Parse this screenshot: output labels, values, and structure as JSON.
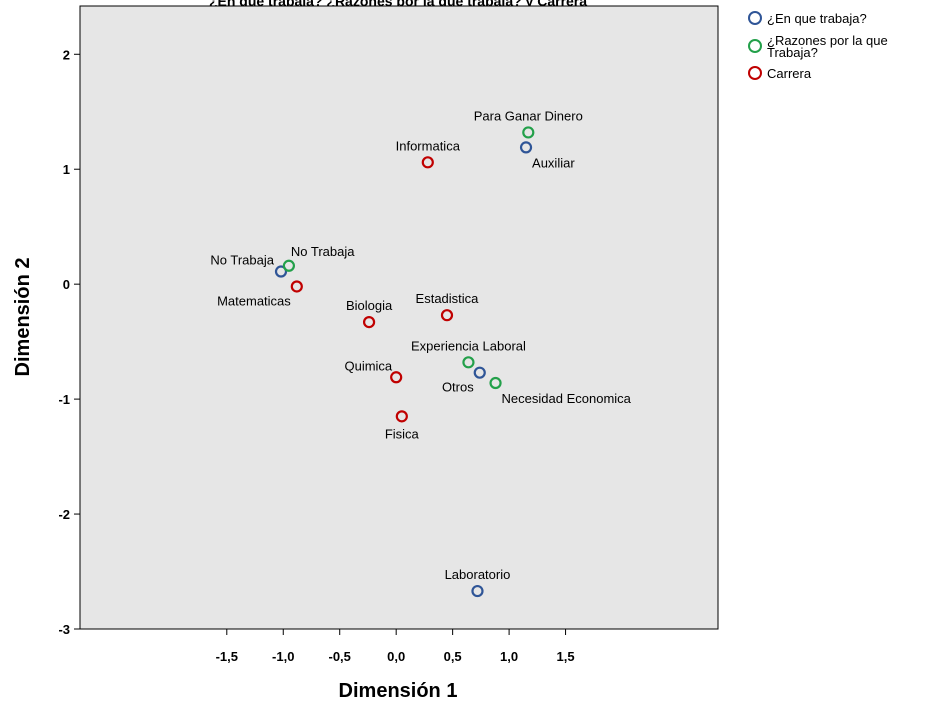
{
  "chart_data": {
    "type": "scatter",
    "title": "¿En que trabaja? ¿Razones por la que trabaja? y Carrera",
    "xlabel": "Dimensión 1",
    "ylabel": "Dimensión 2",
    "xlim": [
      -2.8,
      2.85
    ],
    "ylim": [
      -3.0,
      2.42
    ],
    "x_ticks": [
      {
        "value": -1.5,
        "label": "-1,5"
      },
      {
        "value": -1.0,
        "label": "-1,0"
      },
      {
        "value": -0.5,
        "label": "-0,5"
      },
      {
        "value": 0.0,
        "label": "0,0"
      },
      {
        "value": 0.5,
        "label": "0,5"
      },
      {
        "value": 1.0,
        "label": "1,0"
      },
      {
        "value": 1.5,
        "label": "1,5"
      }
    ],
    "y_ticks": [
      {
        "value": 2,
        "label": "2"
      },
      {
        "value": 1,
        "label": "1"
      },
      {
        "value": 0,
        "label": "0"
      },
      {
        "value": -1,
        "label": "-1"
      },
      {
        "value": -2,
        "label": "-2"
      },
      {
        "value": -3,
        "label": "-3"
      }
    ],
    "grid": false,
    "legend_position": "top-right outside",
    "series": [
      {
        "name": "¿En que trabaja?",
        "color": "#2f5597",
        "points": [
          {
            "x": -1.02,
            "y": 0.11,
            "label": "No Trabaja",
            "anchor": "left"
          },
          {
            "x": 1.15,
            "y": 1.19,
            "label": "Auxiliar",
            "anchor": "below-right"
          },
          {
            "x": 0.74,
            "y": -0.77,
            "label": "Otros",
            "anchor": "below-left"
          },
          {
            "x": 0.72,
            "y": -2.67,
            "label": "Laboratorio",
            "anchor": "above"
          }
        ]
      },
      {
        "name": "¿Razones por la que Trabaja?",
        "color": "#23a04a",
        "points": [
          {
            "x": 1.17,
            "y": 1.32,
            "label": "Para Ganar Dinero",
            "anchor": "above"
          },
          {
            "x": -0.95,
            "y": 0.16,
            "label": "No Trabaja",
            "anchor": "above-right"
          },
          {
            "x": 0.64,
            "y": -0.68,
            "label": "Experiencia Laboral",
            "anchor": "above"
          },
          {
            "x": 0.88,
            "y": -0.86,
            "label": "Necesidad Economica",
            "anchor": "below-right"
          }
        ]
      },
      {
        "name": "Carrera",
        "color": "#c00000",
        "points": [
          {
            "x": 0.28,
            "y": 1.06,
            "label": "Informatica",
            "anchor": "above"
          },
          {
            "x": -0.88,
            "y": -0.02,
            "label": "Matematicas",
            "anchor": "below-left"
          },
          {
            "x": -0.24,
            "y": -0.33,
            "label": "Biologia",
            "anchor": "above"
          },
          {
            "x": 0.45,
            "y": -0.27,
            "label": "Estadistica",
            "anchor": "above"
          },
          {
            "x": 0.0,
            "y": -0.81,
            "label": "Quimica",
            "anchor": "above-left"
          },
          {
            "x": 0.05,
            "y": -1.15,
            "label": "Fisica",
            "anchor": "below"
          }
        ]
      }
    ],
    "legend": [
      {
        "label_lines": [
          "¿En que trabaja?"
        ],
        "color": "#2f5597"
      },
      {
        "label_lines": [
          "¿Razones por la que",
          "Trabaja?"
        ],
        "color": "#23a04a"
      },
      {
        "label_lines": [
          "Carrera"
        ],
        "color": "#c00000"
      }
    ]
  },
  "style": {
    "plot_background": "#e6e6e6",
    "axis_color": "#000000"
  }
}
